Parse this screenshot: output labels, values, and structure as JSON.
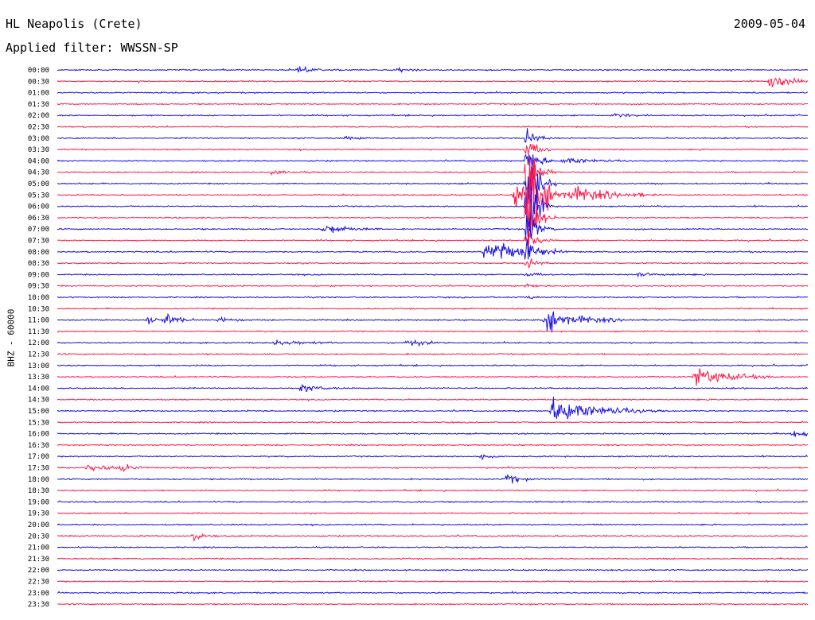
{
  "header": {
    "station": "HL Neapolis (Crete)",
    "date": "2009-05-04",
    "filter": "Applied filter: WWSSN-SP"
  },
  "colors": {
    "even_rows": "#1a10e0",
    "odd_rows": "#ff1a4a",
    "background": "#ffffff"
  },
  "chart_data": {
    "type": "line",
    "title": "HL Neapolis (Crete)",
    "subtitle": "Applied filter: WWSSN-SP",
    "date": "2009-05-04",
    "ylabel": "BHZ - 60000",
    "xlabel": "",
    "row_labels": [
      "00:00",
      "00:30",
      "01:00",
      "01:30",
      "02:00",
      "02:30",
      "03:00",
      "03:30",
      "04:00",
      "04:30",
      "05:00",
      "05:30",
      "06:00",
      "06:30",
      "07:00",
      "07:30",
      "08:00",
      "08:30",
      "09:00",
      "09:30",
      "10:00",
      "10:30",
      "11:00",
      "11:30",
      "12:00",
      "12:30",
      "13:00",
      "13:30",
      "14:00",
      "14:30",
      "15:00",
      "15:30",
      "16:00",
      "16:30",
      "17:00",
      "17:30",
      "18:00",
      "18:30",
      "19:00",
      "19:30",
      "20:00",
      "20:30",
      "21:00",
      "21:30",
      "22:00",
      "22:30",
      "23:00",
      "23:30"
    ],
    "row_duration_minutes": 30,
    "noise_amplitude": 0.12,
    "events": [
      {
        "row": 0,
        "t": 0.32,
        "amp": 0.55,
        "dur": 0.025
      },
      {
        "row": 0,
        "t": 0.455,
        "amp": 0.35,
        "dur": 0.015
      },
      {
        "row": 1,
        "t": 0.95,
        "amp": 2.0,
        "dur": 0.02
      },
      {
        "row": 4,
        "t": 0.74,
        "amp": 0.4,
        "dur": 0.02
      },
      {
        "row": 6,
        "t": 0.385,
        "amp": 0.3,
        "dur": 0.02
      },
      {
        "row": 8,
        "t": 0.675,
        "amp": 0.7,
        "dur": 0.03
      },
      {
        "row": 9,
        "t": 0.285,
        "amp": 0.4,
        "dur": 0.02
      },
      {
        "row": 11,
        "t": 0.61,
        "amp": 2.2,
        "dur": 0.06
      },
      {
        "row": 11,
        "t": 0.685,
        "amp": 1.3,
        "dur": 0.04
      },
      {
        "row": 14,
        "t": 0.355,
        "amp": 1.0,
        "dur": 0.03
      },
      {
        "row": 16,
        "t": 0.57,
        "amp": 2.0,
        "dur": 0.04
      },
      {
        "row": 16,
        "t": 0.59,
        "amp": 1.3,
        "dur": 0.025
      },
      {
        "row": 18,
        "t": 0.775,
        "amp": 0.5,
        "dur": 0.03
      },
      {
        "row": 22,
        "t": 0.12,
        "amp": 0.7,
        "dur": 0.015
      },
      {
        "row": 22,
        "t": 0.145,
        "amp": 1.1,
        "dur": 0.015
      },
      {
        "row": 22,
        "t": 0.215,
        "amp": 0.6,
        "dur": 0.015
      },
      {
        "row": 22,
        "t": 0.65,
        "amp": 2.5,
        "dur": 0.04
      },
      {
        "row": 24,
        "t": 0.29,
        "amp": 0.6,
        "dur": 0.03
      },
      {
        "row": 24,
        "t": 0.465,
        "amp": 1.0,
        "dur": 0.02
      },
      {
        "row": 27,
        "t": 0.85,
        "amp": 2.0,
        "dur": 0.04
      },
      {
        "row": 28,
        "t": 0.325,
        "amp": 0.8,
        "dur": 0.02
      },
      {
        "row": 30,
        "t": 0.66,
        "amp": 2.6,
        "dur": 0.05
      },
      {
        "row": 32,
        "t": 0.98,
        "amp": 0.7,
        "dur": 0.02
      },
      {
        "row": 34,
        "t": 0.565,
        "amp": 0.9,
        "dur": 0.008
      },
      {
        "row": 35,
        "t": 0.04,
        "amp": 0.6,
        "dur": 0.03
      },
      {
        "row": 35,
        "t": 0.085,
        "amp": 0.9,
        "dur": 0.012
      },
      {
        "row": 36,
        "t": 0.6,
        "amp": 1.2,
        "dur": 0.012
      },
      {
        "row": 41,
        "t": 0.18,
        "amp": 1.2,
        "dur": 0.012
      }
    ],
    "main_event": {
      "start_row": 6,
      "end_row": 20,
      "t": 0.625,
      "peak_row": 11,
      "amp": 16
    },
    "grid": false
  }
}
